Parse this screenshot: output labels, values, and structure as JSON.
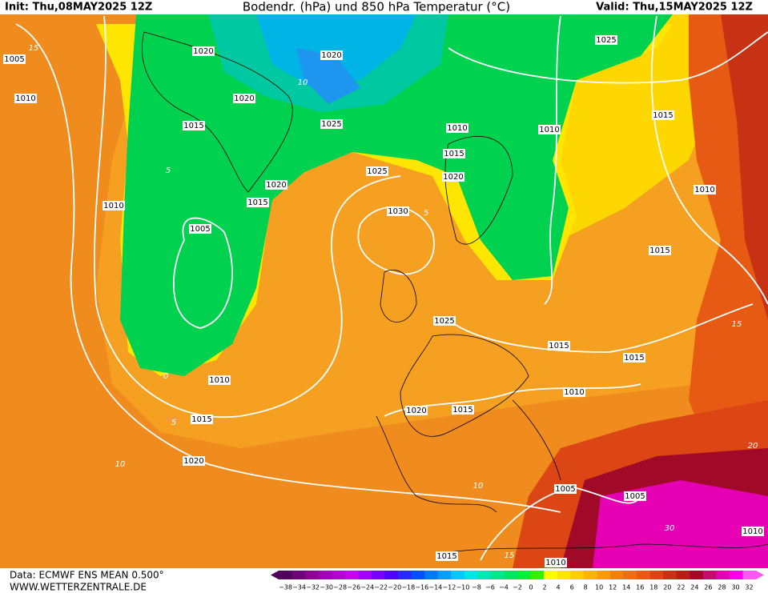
{
  "header": {
    "init": "Init: Thu,08MAY2025 12Z",
    "title": "Bodendr. (hPa) und 850 hPa Temperatur (°C)",
    "valid": "Valid: Thu,15MAY2025 12Z"
  },
  "isobar_labels": [
    "1005",
    "1010",
    "1020",
    "1020",
    "1020",
    "1015",
    "1025",
    "1025",
    "1010",
    "1015",
    "1020",
    "1015",
    "1010",
    "1025",
    "1030",
    "1020",
    "1010",
    "1005",
    "1015",
    "1025",
    "1015",
    "1015",
    "1010",
    "1010",
    "1020",
    "1015",
    "1015",
    "1020",
    "1005",
    "1005",
    "1010",
    "1015",
    "1010",
    "1010",
    "1015"
  ],
  "temperature_labels": [
    "15",
    "10",
    "5",
    "0",
    "5",
    "10",
    "15",
    "20",
    "30",
    "5",
    "10",
    "15"
  ],
  "footer": {
    "source": "Data: ECMWF ENS MEAN 0.500°",
    "site": "WWW.WETTERZENTRALE.DE"
  },
  "colorbar": {
    "labels": [
      "−38",
      "−34",
      "−32",
      "−30",
      "−28",
      "−26",
      "−24",
      "−22",
      "−20",
      "−18",
      "−16",
      "−14",
      "−12",
      "−10",
      "−8",
      "−6",
      "−4",
      "−2",
      "0",
      "2",
      "4",
      "6",
      "8",
      "10",
      "12",
      "14",
      "16",
      "18",
      "20",
      "22",
      "24",
      "26",
      "28",
      "30",
      "32"
    ],
    "colors": [
      "#50005a",
      "#6e0078",
      "#8c0096",
      "#a000b4",
      "#b400d2",
      "#c800f0",
      "#a000ff",
      "#7800ff",
      "#5000ff",
      "#2828ff",
      "#0050ff",
      "#0078ff",
      "#00a0ff",
      "#00c8ff",
      "#00e6e6",
      "#00e6b4",
      "#00e68c",
      "#00e664",
      "#00f03c",
      "#32f000",
      "#ffff00",
      "#ffe600",
      "#ffcd00",
      "#ffb400",
      "#ff9b00",
      "#f08200",
      "#eb6e14",
      "#e65a14",
      "#dc4614",
      "#c83214",
      "#b41e14",
      "#a00a28",
      "#c80a6e",
      "#e600b4",
      "#ff00e6",
      "#ff5af0"
    ]
  }
}
